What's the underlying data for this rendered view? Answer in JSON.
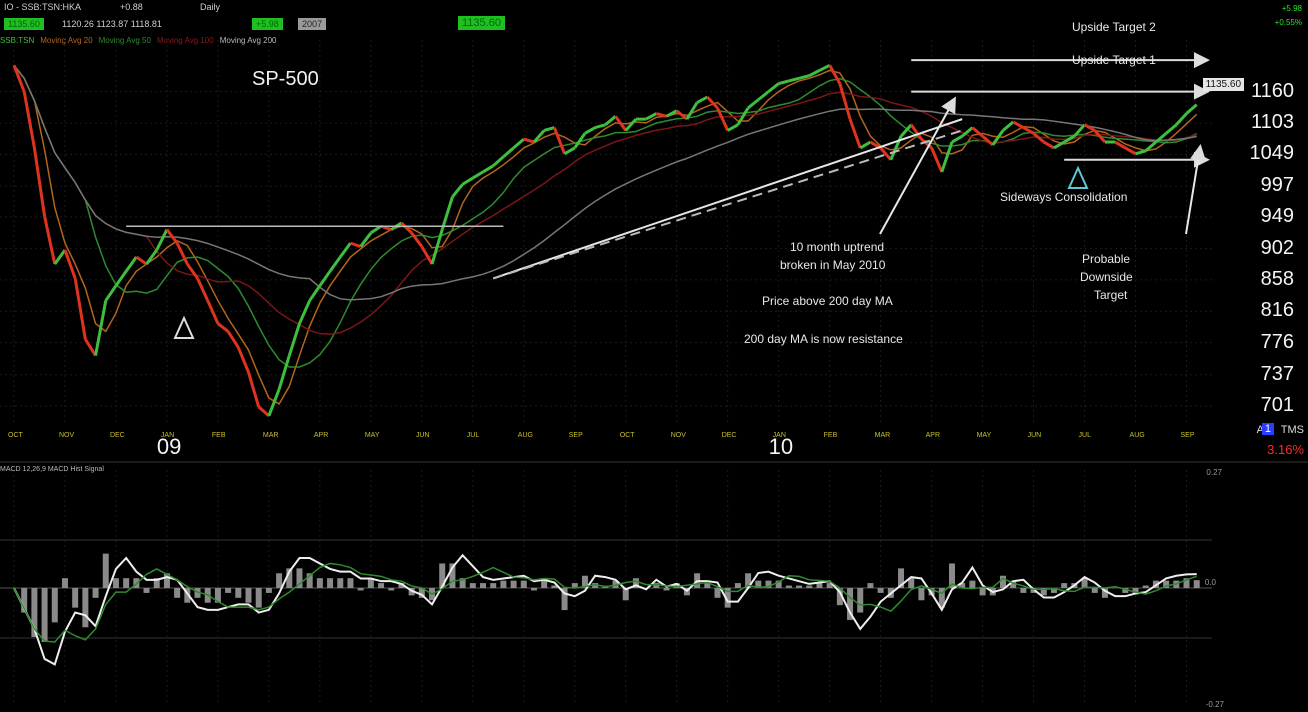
{
  "toolbar": {
    "symbol": "IO - SSB:TSN:HKA",
    "change": "+0.88",
    "mode": "Daily",
    "ohlc": "1120.26   1123.87   1118.81",
    "last_box": "1135.60",
    "change_box": "+5.98",
    "flag_box": "2007",
    "center_box": "1135.60",
    "corner_top": "+5.98",
    "corner_sub": "+0.55%"
  },
  "legend": [
    {
      "label": "SSB:TSN",
      "color": "#3fbf3f"
    },
    {
      "label": "Moving Avg 20",
      "color": "#b5651d"
    },
    {
      "label": "Moving Avg 50",
      "color": "#2e8b2e"
    },
    {
      "label": "Moving Avg 100",
      "color": "#8b1a1a"
    },
    {
      "label": "Moving Avg 200",
      "color": "#bbbbbb"
    }
  ],
  "chart_data": {
    "type": "line",
    "title": "SP-500",
    "price_scale": "log",
    "ylim": [
      680,
      1260
    ],
    "ticks": [
      1160,
      1103,
      1049,
      997,
      949,
      902,
      858,
      816,
      776,
      737,
      701
    ],
    "last_price_box": "1135.60",
    "x_months": [
      "OCT",
      "NOV",
      "DEC",
      "JAN",
      "FEB",
      "MAR",
      "APR",
      "MAY",
      "JUN",
      "JUL",
      "AUG",
      "SEP",
      "OCT",
      "NOV",
      "DEC",
      "JAN",
      "FEB",
      "MAR",
      "APR",
      "MAY",
      "JUN",
      "JUL",
      "AUG",
      "SEP"
    ],
    "year_labels": [
      {
        "label": "09",
        "month_index": 3
      },
      {
        "label": "10",
        "month_index": 15
      }
    ],
    "series": [
      {
        "name": "SP-500",
        "color": "#3fbf3f",
        "x": [
          0,
          0.2,
          0.4,
          0.6,
          0.8,
          1.0,
          1.2,
          1.4,
          1.6,
          1.8,
          2.0,
          2.2,
          2.4,
          2.6,
          2.8,
          3.0,
          3.2,
          3.4,
          3.6,
          3.8,
          4.0,
          4.2,
          4.4,
          4.6,
          4.8,
          5.0,
          5.2,
          5.4,
          5.6,
          5.8,
          6.0,
          6.2,
          6.4,
          6.6,
          6.8,
          7.0,
          7.2,
          7.4,
          7.6,
          7.8,
          8.0,
          8.2,
          8.4,
          8.6,
          8.8,
          9.0,
          9.2,
          9.4,
          9.6,
          9.8,
          10.0,
          10.2,
          10.4,
          10.6,
          10.8,
          11.0,
          11.2,
          11.4,
          11.6,
          11.8,
          12.0,
          12.2,
          12.4,
          12.6,
          12.8,
          13.0,
          13.2,
          13.4,
          13.6,
          13.8,
          14.0,
          14.2,
          14.4,
          14.6,
          14.8,
          15.0,
          15.2,
          15.4,
          15.6,
          15.8,
          16.0,
          16.2,
          16.4,
          16.6,
          16.8,
          17.0,
          17.2,
          17.4,
          17.6,
          17.8,
          18.0,
          18.2,
          18.4,
          18.6,
          18.8,
          19.0,
          19.2,
          19.4,
          19.6,
          19.8,
          20.0,
          20.2,
          20.4,
          20.6,
          20.8,
          21.0,
          21.2,
          21.4,
          21.6,
          21.8,
          22.0,
          22.2,
          22.4,
          22.6,
          22.8,
          23.0,
          23.2
        ],
        "y": [
          1210,
          1160,
          1060,
          950,
          880,
          900,
          860,
          780,
          760,
          830,
          850,
          870,
          890,
          880,
          900,
          930,
          910,
          880,
          860,
          830,
          800,
          790,
          770,
          740,
          700,
          690,
          720,
          760,
          800,
          830,
          850,
          870,
          890,
          910,
          905,
          925,
          935,
          930,
          940,
          925,
          905,
          880,
          930,
          980,
          1000,
          1010,
          1020,
          1030,
          1045,
          1060,
          1075,
          1070,
          1090,
          1095,
          1050,
          1060,
          1085,
          1095,
          1100,
          1115,
          1090,
          1110,
          1110,
          1120,
          1115,
          1125,
          1110,
          1140,
          1150,
          1130,
          1090,
          1100,
          1130,
          1145,
          1160,
          1175,
          1180,
          1185,
          1190,
          1200,
          1210,
          1175,
          1110,
          1060,
          1070,
          1060,
          1040,
          1080,
          1100,
          1075,
          1060,
          1020,
          1070,
          1080,
          1095,
          1080,
          1065,
          1090,
          1105,
          1095,
          1085,
          1070,
          1060,
          1070,
          1080,
          1100,
          1090,
          1070,
          1070,
          1060,
          1050,
          1055,
          1070,
          1085,
          1100,
          1120,
          1136
        ]
      }
    ],
    "horizontal_levels": [
      {
        "label": "Upside Target 2",
        "value": 1220
      },
      {
        "label": "Upside Target 1",
        "value": 1160
      },
      {
        "label": "",
        "value": 1040
      }
    ],
    "annotations": [
      "10 month uptrend",
      "broken in May 2010",
      "Price above 200 day MA",
      "200 day MA is now resistance",
      "Sideways Consolidation",
      "Probable",
      "Downside",
      "Target"
    ]
  },
  "oscillator": {
    "legend": "MACD 12,26,9   MACD Hist   Signal",
    "right_top": "0.27",
    "right_mid": "0.0",
    "right_bottom": "-0.27"
  },
  "corner_bottom": {
    "top": "A",
    "badge": "1",
    "text": "TMS",
    "red": "3.16%"
  }
}
